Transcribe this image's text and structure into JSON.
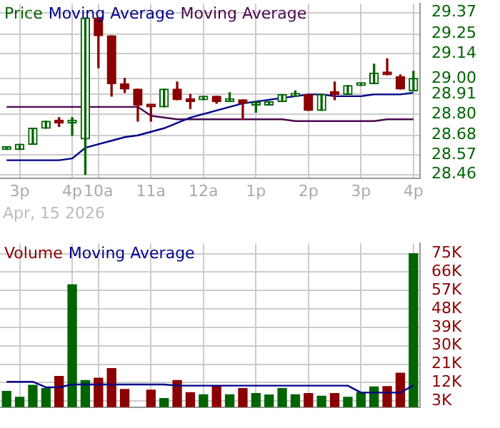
{
  "chart_data": [
    {
      "type": "candlestick",
      "categories": [
        null,
        "3p",
        null,
        null,
        null,
        "4p",
        null,
        "10a",
        null,
        null,
        null,
        "11a",
        null,
        null,
        null,
        "12a",
        null,
        null,
        null,
        "1p",
        null,
        null,
        null,
        "2p",
        null,
        null,
        null,
        "3p",
        null,
        null,
        null,
        "4p"
      ],
      "series": [
        {
          "name": "Price",
          "type": "candlestick",
          "color": "#006400",
          "colors": [
            "#006400",
            "#006400",
            "#006400",
            "#006400",
            "#8b0000",
            "#006400",
            "#006400",
            "#8b0000",
            "#8b0000",
            "#8b0000",
            "#8b0000",
            "#8b0000",
            "#006400",
            "#8b0000",
            "#8b0000",
            "#006400",
            "#8b0000",
            "#006400",
            "#8b0000",
            "#006400",
            "#006400",
            "#006400",
            "#006400",
            "#8b0000",
            "#006400",
            "#8b0000",
            "#006400",
            "#006400",
            "#006400",
            "#8b0000",
            "#8b0000",
            "#006400"
          ],
          "ohlc": [
            [
              28.6,
              28.61,
              28.6,
              28.61
            ],
            [
              28.6,
              28.63,
              28.6,
              28.63
            ],
            [
              28.63,
              28.72,
              28.63,
              28.72
            ],
            [
              28.72,
              28.76,
              28.72,
              28.76
            ],
            [
              28.76,
              28.78,
              28.73,
              28.75
            ],
            [
              28.75,
              28.78,
              28.68,
              28.75
            ],
            [
              28.66,
              29.34,
              28.46,
              29.34
            ],
            [
              29.34,
              29.34,
              29.06,
              29.24
            ],
            [
              29.24,
              29.24,
              28.9,
              28.97
            ],
            [
              28.97,
              29.0,
              28.92,
              28.94
            ],
            [
              28.94,
              28.94,
              28.76,
              28.85
            ],
            [
              28.85,
              28.85,
              28.76,
              28.84
            ],
            [
              28.84,
              28.94,
              28.84,
              28.94
            ],
            [
              28.94,
              28.98,
              28.88,
              28.88
            ],
            [
              28.88,
              28.91,
              28.83,
              28.87
            ],
            [
              28.88,
              28.9,
              28.88,
              28.9
            ],
            [
              28.9,
              28.9,
              28.86,
              28.87
            ],
            [
              28.87,
              28.92,
              28.87,
              28.88
            ],
            [
              28.88,
              28.88,
              28.77,
              28.86
            ],
            [
              28.85,
              28.87,
              28.81,
              28.86
            ],
            [
              28.85,
              28.87,
              28.85,
              28.87
            ],
            [
              28.87,
              28.91,
              28.87,
              28.91
            ],
            [
              28.9,
              28.93,
              28.9,
              28.91
            ],
            [
              28.91,
              28.91,
              28.82,
              28.82
            ],
            [
              28.82,
              28.91,
              28.82,
              28.91
            ],
            [
              28.92,
              28.98,
              28.88,
              28.91
            ],
            [
              28.91,
              28.96,
              28.91,
              28.96
            ],
            [
              28.96,
              28.97,
              28.96,
              28.97
            ],
            [
              28.97,
              29.08,
              28.97,
              29.03
            ],
            [
              29.03,
              29.11,
              29.02,
              29.02
            ],
            [
              29.01,
              29.02,
              28.94,
              28.94
            ],
            [
              28.93,
              29.04,
              28.93,
              29.0
            ]
          ]
        },
        {
          "name": "Moving Average",
          "type": "line",
          "color": "#00008b",
          "values": [
            28.54,
            28.54,
            28.54,
            28.54,
            28.54,
            28.55,
            28.61,
            28.63,
            28.65,
            28.67,
            28.68,
            28.7,
            28.72,
            28.75,
            28.78,
            28.8,
            28.82,
            28.84,
            28.86,
            28.87,
            28.88,
            28.89,
            28.9,
            28.91,
            28.91,
            28.9,
            28.9,
            28.9,
            28.91,
            28.91,
            28.91,
            28.92
          ]
        },
        {
          "name": "Moving Average",
          "type": "line",
          "color": "#4b0850",
          "values": [
            28.84,
            28.84,
            28.84,
            28.84,
            28.84,
            28.84,
            28.84,
            28.84,
            28.84,
            28.84,
            28.84,
            28.79,
            28.78,
            28.77,
            28.77,
            28.77,
            28.77,
            28.77,
            28.77,
            28.77,
            28.77,
            28.77,
            28.76,
            28.76,
            28.76,
            28.76,
            28.76,
            28.76,
            28.76,
            28.77,
            28.77,
            28.77
          ]
        }
      ],
      "ylim": [
        28.44,
        29.42
      ],
      "yticks": [
        {
          "value": 28.46,
          "label": "28.46"
        },
        {
          "value": 28.57,
          "label": "28.57"
        },
        {
          "value": 28.68,
          "label": "28.68"
        },
        {
          "value": 28.8,
          "label": "28.80"
        },
        {
          "value": 28.91,
          "label": "28.91"
        },
        {
          "value": 29,
          "label": "29.00"
        },
        {
          "value": 29.14,
          "label": "29.14"
        },
        {
          "value": 29.25,
          "label": "29.25"
        },
        {
          "value": 29.37,
          "label": "29.37"
        }
      ],
      "grid": true,
      "legend": "top left",
      "marker": "none",
      "annotations": [
        "Apr, 15 2026"
      ]
    },
    {
      "type": "bar",
      "categories": [
        null,
        null,
        null,
        null,
        null,
        null,
        null,
        null,
        null,
        null,
        null,
        null,
        null,
        null,
        null,
        null,
        null,
        null,
        null,
        null,
        null,
        null,
        null,
        null,
        null,
        null,
        null,
        null,
        null,
        null,
        null,
        null
      ],
      "tick_labels": "y",
      "series": [
        {
          "name": "Volume",
          "type": "bar",
          "color": "#8b0000",
          "colors": [
            "#006400",
            "#006400",
            "#006400",
            "#006400",
            "#8b0000",
            "#006400",
            "#006400",
            "#8b0000",
            "#8b0000",
            "#8b0000",
            "#8b0000",
            "#8b0000",
            "#006400",
            "#8b0000",
            "#8b0000",
            "#006400",
            "#8b0000",
            "#006400",
            "#8b0000",
            "#006400",
            "#006400",
            "#006400",
            "#006400",
            "#8b0000",
            "#006400",
            "#8b0000",
            "#006400",
            "#006400",
            "#006400",
            "#8b0000",
            "#8b0000",
            "#006400"
          ],
          "values": [
            7700,
            4800,
            10700,
            9100,
            15000,
            59800,
            13000,
            14200,
            18900,
            8700,
            null,
            8300,
            4200,
            13000,
            7100,
            6100,
            10300,
            6100,
            9100,
            6700,
            6000,
            9100,
            6100,
            6700,
            5400,
            6700,
            4800,
            7100,
            9900,
            10100,
            16600,
            75000
          ]
        },
        {
          "name": "Moving Average",
          "type": "line",
          "color": "#00008b",
          "values": [
            12400,
            12400,
            12400,
            9700,
            9700,
            11100,
            11100,
            11100,
            11100,
            11100,
            11100,
            11100,
            11100,
            10500,
            10500,
            10500,
            10500,
            10500,
            10500,
            10500,
            10500,
            10500,
            10500,
            10500,
            10500,
            10500,
            10500,
            7100,
            7100,
            7100,
            7100,
            10700
          ]
        }
      ],
      "ylim": [
        0,
        80000
      ],
      "yticks": [
        {
          "value": 3000,
          "label": "3K"
        },
        {
          "value": 12000,
          "label": "12K"
        },
        {
          "value": 21000,
          "label": "21K"
        },
        {
          "value": 30000,
          "label": "30K"
        },
        {
          "value": 39000,
          "label": "39K"
        },
        {
          "value": 48000,
          "label": "48K"
        },
        {
          "value": 57000,
          "label": "57K"
        },
        {
          "value": 66000,
          "label": "66K"
        },
        {
          "value": 75000,
          "label": "75K"
        }
      ],
      "grid": true,
      "legend": "top left",
      "marker": "none"
    }
  ]
}
